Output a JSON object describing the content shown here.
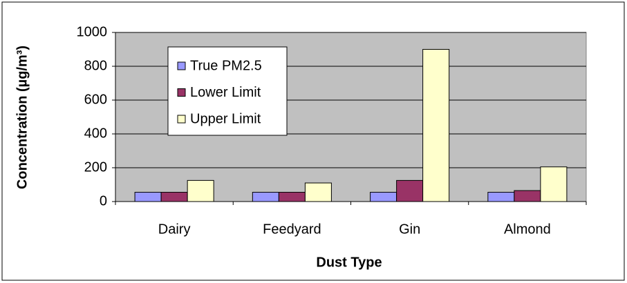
{
  "chart_data": {
    "type": "bar",
    "categories": [
      "Dairy",
      "Feedyard",
      "Gin",
      "Almond"
    ],
    "series": [
      {
        "name": "True PM2.5",
        "color": "#9999ff",
        "values": [
          55,
          55,
          55,
          55
        ]
      },
      {
        "name": "Lower Limit",
        "color": "#993366",
        "values": [
          55,
          55,
          125,
          65
        ]
      },
      {
        "name": "Upper Limit",
        "color": "#ffffcc",
        "values": [
          125,
          110,
          900,
          205
        ]
      }
    ],
    "ylim": [
      0,
      1000
    ],
    "yticks": [
      0,
      200,
      400,
      600,
      800,
      1000
    ],
    "grid": true,
    "x_label": "Dust Type",
    "y_label": "Concentration (µg/m³)",
    "legend": "upper left",
    "plot_background": "#c0c0c0"
  }
}
